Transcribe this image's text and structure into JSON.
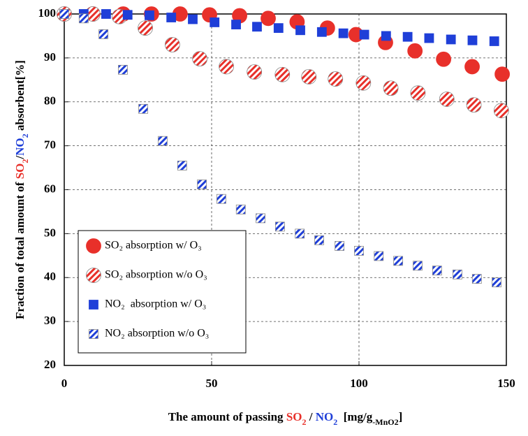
{
  "chart_data": {
    "type": "scatter",
    "xlabel_parts": [
      {
        "text": "The amount of passing "
      },
      {
        "text": "SO",
        "color": "#e8302a"
      },
      {
        "text": "2",
        "color": "#e8302a",
        "sub": true
      },
      {
        "text": " / "
      },
      {
        "text": "NO",
        "color": "#1f3fd8"
      },
      {
        "text": "2",
        "color": "#1f3fd8",
        "sub": true
      },
      {
        "text": "  [mg/g"
      },
      {
        "text": "-MnO2",
        "sub": true
      },
      {
        "text": "]"
      }
    ],
    "ylabel_parts": [
      {
        "text": "Fraction of total amount of "
      },
      {
        "text": "SO",
        "color": "#e8302a"
      },
      {
        "text": "2",
        "color": "#e8302a",
        "sub": true
      },
      {
        "text": "/"
      },
      {
        "text": "NO",
        "color": "#1f3fd8"
      },
      {
        "text": "2",
        "color": "#1f3fd8",
        "sub": true
      },
      {
        "text": " absorbent[%]"
      }
    ],
    "xlim": [
      0,
      150
    ],
    "xticks": [
      0,
      50,
      100,
      150
    ],
    "ylim": [
      20,
      100
    ],
    "yticks": [
      20,
      30,
      40,
      50,
      60,
      70,
      80,
      90,
      100
    ],
    "grid": true,
    "legend": "lower left",
    "series": [
      {
        "name": "SO₂ absorption w/ O₃",
        "color": "#e8302a",
        "marker": "circle",
        "hatched": false,
        "x": [
          0,
          9.7,
          20,
          29.6,
          39.3,
          49.3,
          59.5,
          69.2,
          79,
          89.3,
          99,
          109,
          119,
          128.7,
          138.4,
          148.6
        ],
        "values": [
          100,
          100,
          100,
          100,
          100,
          99.8,
          99.6,
          99.0,
          98.2,
          96.8,
          95.3,
          93.5,
          91.6,
          89.7,
          88.0,
          86.3
        ]
      },
      {
        "name": "SO₂ absorption w/o O₃",
        "color": "#e8302a",
        "marker": "circle",
        "hatched": true,
        "x": [
          0,
          9.7,
          18.7,
          27.5,
          36.7,
          46,
          55,
          64.5,
          74,
          83,
          92,
          101.5,
          110.8,
          120,
          129.8,
          139,
          148.3
        ],
        "values": [
          100,
          100,
          99.4,
          96.8,
          93,
          89.8,
          88,
          86.8,
          86.2,
          85.7,
          85.2,
          84.3,
          83.1,
          82,
          80.6,
          79.3,
          78
        ]
      },
      {
        "name": "NO₂  absorption w/ O₃",
        "color": "#1f3fd8",
        "marker": "square",
        "hatched": false,
        "x": [
          0,
          6.6,
          14.2,
          21.5,
          28.9,
          36.3,
          43.6,
          51,
          58.3,
          65.4,
          72.7,
          80.1,
          87.4,
          94.7,
          101.8,
          109.2,
          116.5,
          123.8,
          131.2,
          138.5,
          145.9
        ],
        "values": [
          100,
          100,
          100,
          99.8,
          99.7,
          99.2,
          98.8,
          98.1,
          97.6,
          97.1,
          96.8,
          96.3,
          95.9,
          95.6,
          95.3,
          95.0,
          94.8,
          94.5,
          94.2,
          94.0,
          93.8
        ]
      },
      {
        "name": "NO₂ absorption w/o O₃",
        "color": "#1f3fd8",
        "marker": "square",
        "hatched": true,
        "x": [
          0,
          6.6,
          13.3,
          19.9,
          26.8,
          33.4,
          40,
          46.7,
          53.3,
          59.9,
          66.6,
          73.2,
          79.9,
          86.5,
          93.4,
          100,
          106.7,
          113.3,
          119.9,
          126.5,
          133.4,
          140,
          146.7
        ],
        "values": [
          100,
          99,
          95.4,
          87.3,
          78.4,
          71.1,
          65.5,
          61.2,
          57.9,
          55.5,
          53.5,
          51.6,
          50.0,
          48.5,
          47.2,
          46.1,
          44.9,
          43.8,
          42.7,
          41.6,
          40.7,
          39.7,
          38.9
        ]
      }
    ]
  }
}
